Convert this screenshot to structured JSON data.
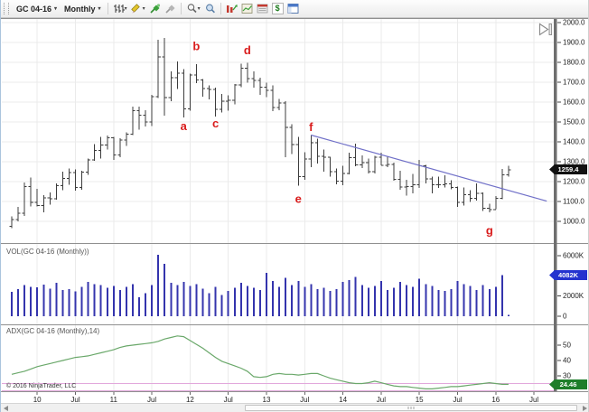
{
  "toolbar": {
    "instrument": "GC 04-16",
    "interval": "Monthly",
    "chevron": "▾"
  },
  "icons": {
    "dollar": "$"
  },
  "price_panel": {
    "last_price_badge": "1259.4"
  },
  "volume_panel": {
    "label": "VOL(GC 04-16 (Monthly))",
    "last_value_badge": "4082K"
  },
  "adx_panel": {
    "label": "ADX(GC 04-16 (Monthly),14)",
    "last_value_badge": "24.46",
    "copyright": "© 2016 NinjaTrader, LLC"
  },
  "chart_data": {
    "type": "ohlc",
    "symbol": "GC 04-16",
    "interval": "Monthly",
    "price": {
      "yticks": [
        1000,
        1100,
        1200,
        1300,
        1400,
        1500,
        1600,
        1700,
        1800,
        1900,
        2000
      ],
      "ylim": [
        980,
        2050
      ],
      "ohlc": [
        [
          975,
          1025,
          965,
          1008
        ],
        [
          1008,
          1072,
          1000,
          1040
        ],
        [
          1040,
          1195,
          1028,
          1175
        ],
        [
          1175,
          1220,
          1075,
          1095
        ],
        [
          1095,
          1163,
          1075,
          1080
        ],
        [
          1080,
          1131,
          1045,
          1118
        ],
        [
          1118,
          1145,
          1085,
          1113
        ],
        [
          1113,
          1192,
          1110,
          1180
        ],
        [
          1180,
          1250,
          1156,
          1215
        ],
        [
          1215,
          1266,
          1185,
          1245
        ],
        [
          1245,
          1262,
          1155,
          1170
        ],
        [
          1170,
          1255,
          1160,
          1248
        ],
        [
          1248,
          1317,
          1235,
          1310
        ],
        [
          1310,
          1388,
          1305,
          1357
        ],
        [
          1357,
          1425,
          1315,
          1385
        ],
        [
          1385,
          1432,
          1361,
          1421
        ],
        [
          1421,
          1425,
          1310,
          1333
        ],
        [
          1333,
          1418,
          1322,
          1410
        ],
        [
          1410,
          1448,
          1380,
          1438
        ],
        [
          1438,
          1577,
          1435,
          1556
        ],
        [
          1556,
          1578,
          1462,
          1535
        ],
        [
          1535,
          1559,
          1478,
          1500
        ],
        [
          1500,
          1637,
          1480,
          1628
        ],
        [
          1628,
          1913,
          1620,
          1828
        ],
        [
          1828,
          1923,
          1532,
          1622
        ],
        [
          1622,
          1754,
          1604,
          1722
        ],
        [
          1722,
          1804,
          1667,
          1745
        ],
        [
          1745,
          1765,
          1523,
          1566
        ],
        [
          1566,
          1744,
          1556,
          1737
        ],
        [
          1737,
          1792,
          1696,
          1711
        ],
        [
          1711,
          1717,
          1627,
          1669
        ],
        [
          1669,
          1685,
          1613,
          1664
        ],
        [
          1664,
          1672,
          1527,
          1564
        ],
        [
          1564,
          1642,
          1547,
          1604
        ],
        [
          1604,
          1633,
          1556,
          1610
        ],
        [
          1610,
          1692,
          1588,
          1687
        ],
        [
          1687,
          1794,
          1676,
          1771
        ],
        [
          1771,
          1798,
          1698,
          1719
        ],
        [
          1719,
          1755,
          1672,
          1710
        ],
        [
          1710,
          1723,
          1636,
          1676
        ],
        [
          1676,
          1697,
          1626,
          1660
        ],
        [
          1660,
          1684,
          1554,
          1572
        ],
        [
          1572,
          1615,
          1560,
          1595
        ],
        [
          1595,
          1604,
          1322,
          1472
        ],
        [
          1472,
          1488,
          1338,
          1387
        ],
        [
          1387,
          1424,
          1180,
          1224
        ],
        [
          1224,
          1348,
          1208,
          1313
        ],
        [
          1313,
          1434,
          1272,
          1396
        ],
        [
          1396,
          1416,
          1291,
          1327
        ],
        [
          1327,
          1362,
          1251,
          1323
        ],
        [
          1323,
          1326,
          1226,
          1250
        ],
        [
          1250,
          1267,
          1186,
          1202
        ],
        [
          1202,
          1280,
          1182,
          1240
        ],
        [
          1240,
          1345,
          1237,
          1321
        ],
        [
          1321,
          1392,
          1277,
          1283
        ],
        [
          1283,
          1331,
          1268,
          1295
        ],
        [
          1295,
          1315,
          1241,
          1250
        ],
        [
          1250,
          1330,
          1240,
          1322
        ],
        [
          1322,
          1346,
          1281,
          1281
        ],
        [
          1281,
          1324,
          1273,
          1287
        ],
        [
          1287,
          1296,
          1204,
          1211
        ],
        [
          1211,
          1255,
          1160,
          1173
        ],
        [
          1173,
          1208,
          1130,
          1175
        ],
        [
          1175,
          1239,
          1141,
          1184
        ],
        [
          1184,
          1308,
          1168,
          1279
        ],
        [
          1279,
          1285,
          1190,
          1213
        ],
        [
          1213,
          1224,
          1141,
          1183
        ],
        [
          1183,
          1225,
          1168,
          1184
        ],
        [
          1184,
          1232,
          1170,
          1189
        ],
        [
          1189,
          1206,
          1162,
          1171
        ],
        [
          1171,
          1175,
          1072,
          1095
        ],
        [
          1095,
          1170,
          1080,
          1134
        ],
        [
          1134,
          1157,
          1098,
          1115
        ],
        [
          1115,
          1192,
          1105,
          1141
        ],
        [
          1141,
          1146,
          1052,
          1065
        ],
        [
          1065,
          1088,
          1045,
          1060
        ],
        [
          1060,
          1128,
          1061,
          1116
        ],
        [
          1116,
          1264,
          1112,
          1234
        ],
        [
          1234,
          1280,
          1225,
          1259.4
        ]
      ]
    },
    "volume": {
      "type": "bar",
      "yticks": [
        [
          "6000K",
          6000
        ],
        [
          "2000K",
          2000
        ],
        [
          "0",
          0
        ]
      ],
      "badge_value": 4082,
      "values": [
        2400,
        2700,
        3100,
        2900,
        2850,
        3150,
        2750,
        3300,
        2600,
        2700,
        2450,
        2900,
        3400,
        3200,
        3100,
        2800,
        3000,
        2600,
        2900,
        3200,
        1900,
        2300,
        3100,
        6100,
        5200,
        3300,
        3100,
        3400,
        3000,
        3200,
        2750,
        2300,
        2900,
        2100,
        2500,
        2800,
        3300,
        3000,
        2800,
        2600,
        4300,
        3500,
        2900,
        3800,
        3100,
        3500,
        2900,
        3200,
        2700,
        2800,
        2500,
        2700,
        3400,
        3600,
        3900,
        3100,
        2800,
        3000,
        3500,
        2600,
        2800,
        3400,
        3100,
        2900,
        3700,
        3200,
        3000,
        2600,
        2500,
        2700,
        3500,
        3200,
        3000,
        2600,
        3100,
        2700,
        2900,
        4082,
        120
      ]
    },
    "adx": {
      "type": "line",
      "period": 14,
      "yticks": [
        [
          "50",
          50
        ],
        [
          "40",
          40
        ],
        [
          "30",
          30
        ]
      ],
      "threshold_lines": [
        25,
        20
      ],
      "values": [
        31,
        32,
        33,
        34.5,
        36,
        37,
        38,
        39,
        40,
        41,
        42,
        42.5,
        43,
        44,
        45,
        46,
        47,
        48.5,
        49.5,
        50,
        50.5,
        51,
        51.5,
        52.5,
        54,
        55,
        56,
        55.5,
        53,
        50.5,
        48,
        45,
        42,
        39.5,
        38,
        36.5,
        35,
        33,
        29.5,
        29,
        29.5,
        31,
        31.5,
        31,
        31,
        30.5,
        31,
        31.5,
        31.5,
        30,
        28.5,
        27.5,
        26.5,
        25.5,
        25,
        25,
        25.5,
        26.5,
        25.5,
        24.5,
        23.5,
        23,
        23,
        22.5,
        22,
        21.5,
        21.5,
        22,
        22.5,
        23,
        23,
        23.5,
        24,
        24.5,
        25,
        25.5,
        25,
        24.5,
        24.46
      ]
    },
    "time_ticks": [
      {
        "bar": 4,
        "label": "10"
      },
      {
        "bar": 10,
        "label": "Jul"
      },
      {
        "bar": 16,
        "label": "11"
      },
      {
        "bar": 22,
        "label": "Jul"
      },
      {
        "bar": 28,
        "label": "12"
      },
      {
        "bar": 34,
        "label": "Jul"
      },
      {
        "bar": 40,
        "label": "13"
      },
      {
        "bar": 46,
        "label": "Jul"
      },
      {
        "bar": 52,
        "label": "14"
      },
      {
        "bar": 58,
        "label": "Jul"
      },
      {
        "bar": 64,
        "label": "15"
      },
      {
        "bar": 70,
        "label": "Jul"
      },
      {
        "bar": 76,
        "label": "16"
      },
      {
        "bar": 82,
        "label": "Jul"
      }
    ],
    "annotations": [
      {
        "label": "a",
        "bar": 27,
        "price": 1478
      },
      {
        "label": "b",
        "bar": 29,
        "price": 1880
      },
      {
        "label": "c",
        "bar": 32,
        "price": 1492
      },
      {
        "label": "d",
        "bar": 37,
        "price": 1860
      },
      {
        "label": "e",
        "bar": 45,
        "price": 1112
      },
      {
        "label": "f",
        "bar": 47,
        "price": 1472
      },
      {
        "label": "g",
        "bar": 75,
        "price": 952
      }
    ],
    "trendline": {
      "from": {
        "bar": 47,
        "price": 1434
      },
      "to": {
        "bar": 84,
        "price": 1102
      }
    },
    "colors": {
      "bar": "#3c3c3c",
      "volume": "#3434ad",
      "adx": "#6aa86a",
      "trendline": "#7070c8",
      "annotation": "#d91c1c",
      "threshold": "#e2a8dc",
      "badge_price": "#111111",
      "badge_volume": "#2433cf",
      "badge_adx": "#1e7e2a",
      "grid": "#ebebeb"
    }
  }
}
